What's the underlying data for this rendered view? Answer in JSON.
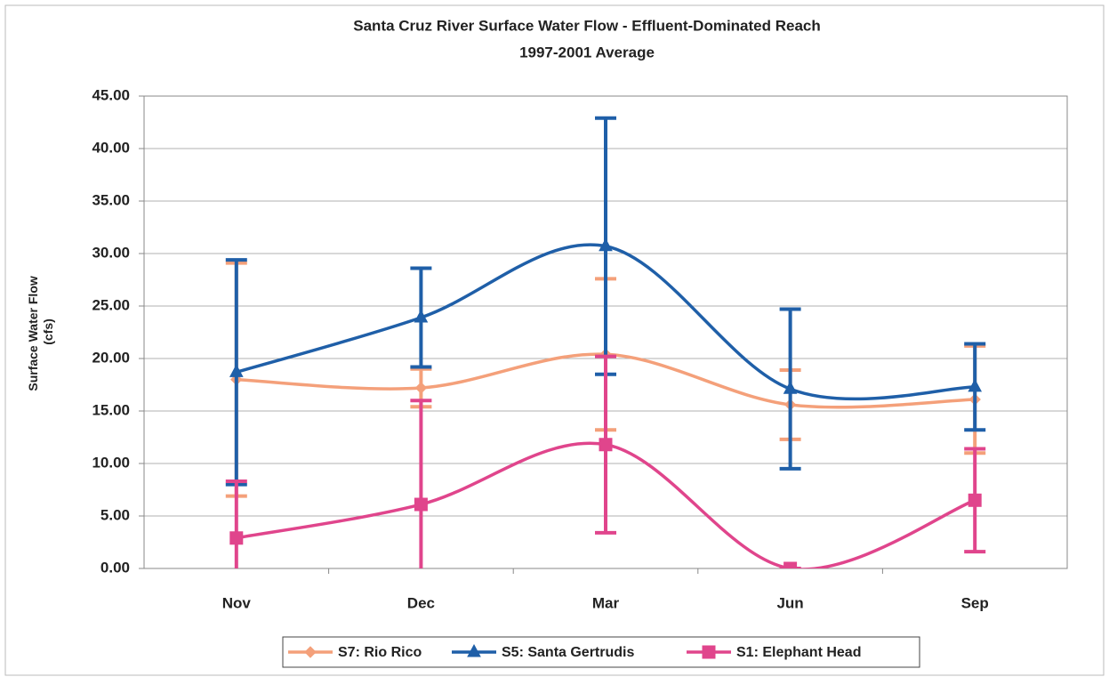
{
  "chart_data": {
    "type": "line",
    "title": "Santa Cruz River Surface Water Flow - Effluent-Dominated Reach",
    "subtitle": "1997-2001 Average",
    "ylabel": [
      "Surface Water Flow",
      "(cfs)"
    ],
    "categories": [
      "Nov",
      "Dec",
      "Mar",
      "Jun",
      "Sep"
    ],
    "ylim": [
      0,
      45
    ],
    "yticks": [
      {
        "value": 0,
        "label": "0.00"
      },
      {
        "value": 5,
        "label": "5.00"
      },
      {
        "value": 10,
        "label": "10.00"
      },
      {
        "value": 15,
        "label": "15.00"
      },
      {
        "value": 20,
        "label": "20.00"
      },
      {
        "value": 25,
        "label": "25.00"
      },
      {
        "value": 30,
        "label": "30.00"
      },
      {
        "value": 35,
        "label": "35.00"
      },
      {
        "value": 40,
        "label": "40.00"
      },
      {
        "value": 45,
        "label": "45.00"
      }
    ],
    "grid": true,
    "smooth": true,
    "legend": "bottom",
    "series": [
      {
        "name": "S7: Rio Rico",
        "color": "#f4a07a",
        "marker": "diamond",
        "values": [
          18.0,
          17.2,
          20.4,
          15.6,
          16.1
        ],
        "errors": [
          11.1,
          1.8,
          7.2,
          3.3,
          5.1
        ]
      },
      {
        "name": "S5: Santa Gertrudis",
        "color": "#1f5fa8",
        "marker": "triangle",
        "values": [
          18.7,
          23.9,
          30.7,
          17.1,
          17.3
        ],
        "errors": [
          10.7,
          4.7,
          12.2,
          7.6,
          4.1
        ]
      },
      {
        "name": "S1: Elephant Head",
        "color": "#e0458c",
        "marker": "square",
        "values": [
          2.9,
          6.1,
          11.8,
          0.0,
          6.5
        ],
        "errors": [
          5.4,
          9.9,
          8.4,
          0.0,
          4.9
        ]
      }
    ]
  }
}
